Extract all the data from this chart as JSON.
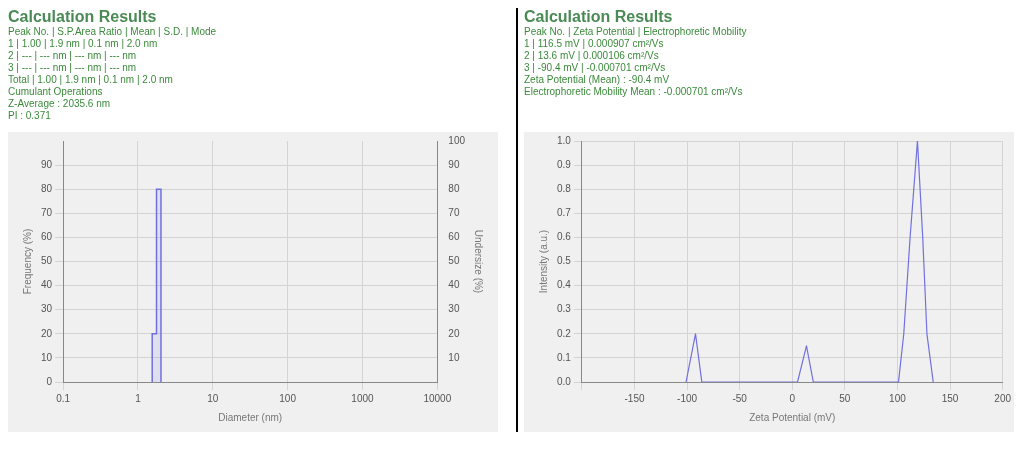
{
  "chart_data": [
    {
      "type": "histogram",
      "title": "Calculation Results",
      "annotations": [
        "Peak No. | S.P.Area Ratio | Mean | S.D. | Mode",
        "1 | 1.00 | 1.9 nm | 0.1 nm | 2.0 nm",
        "2 | --- | --- nm | --- nm | --- nm",
        "3 | --- | --- nm | --- nm | --- nm",
        "Total | 1.00 | 1.9 nm | 0.1 nm | 2.0 nm",
        "Cumulant Operations",
        "Z-Average : 2035.6 nm",
        "PI : 0.371"
      ],
      "bins": [
        1.55,
        1.77,
        2.03
      ],
      "values": [
        20,
        80
      ],
      "color": "#7070e0",
      "xlabel": "Diameter (nm)",
      "ylabel": "Frequency (%)",
      "y2label": "Undersize (%)",
      "log": "x",
      "xlim": [
        0.1,
        10000
      ],
      "xticks": [
        0.1,
        1,
        10,
        100,
        1000,
        10000
      ],
      "ylim": [
        0,
        100
      ],
      "yticks": [
        0,
        10,
        20,
        30,
        40,
        50,
        60,
        70,
        80,
        90
      ],
      "y2lim": [
        0,
        100
      ],
      "y2ticks": [
        10,
        20,
        30,
        40,
        50,
        60,
        70,
        80,
        90,
        100
      ],
      "grid": true
    },
    {
      "type": "line",
      "title": "Calculation Results",
      "annotations": [
        "Peak No. | Zeta Potential | Electrophoretic Mobility",
        "1 | 116.5 mV | 0.000907 cm²/Vs",
        "2 | 13.6 mV | 0.000106 cm²/Vs",
        "3 | -90.4 mV | -0.000701 cm²/Vs",
        "Zeta Potential (Mean) : -90.4 mV",
        "Electrophoretic Mobility Mean : -0.000701 cm²/Vs"
      ],
      "x": [
        -101,
        -92,
        -86,
        5,
        13.5,
        20,
        101,
        106,
        112,
        119,
        124,
        128,
        134
      ],
      "series": [
        {
          "color": "#7070e0",
          "values": [
            0,
            0.2,
            0,
            0,
            0.15,
            0,
            0,
            0.2,
            0.6,
            1.0,
            0.6,
            0.2,
            0
          ]
        }
      ],
      "xlabel": "Zeta Potential (mV)",
      "ylabel": "Intensity (a.u.)",
      "xlim": [
        -200,
        200
      ],
      "xticks": [
        {
          "value": -200,
          "label": null
        },
        -150,
        -100,
        -50,
        0,
        50,
        100,
        150,
        200
      ],
      "ylim": [
        0,
        1
      ],
      "yticks": [
        {
          "value": 0,
          "label": "0.0"
        },
        0.1,
        0.2,
        0.3,
        0.4,
        0.5,
        0.6,
        0.7,
        0.8,
        0.9,
        {
          "value": 1,
          "label": "1.0"
        }
      ],
      "grid": true,
      "marker": "none"
    }
  ]
}
